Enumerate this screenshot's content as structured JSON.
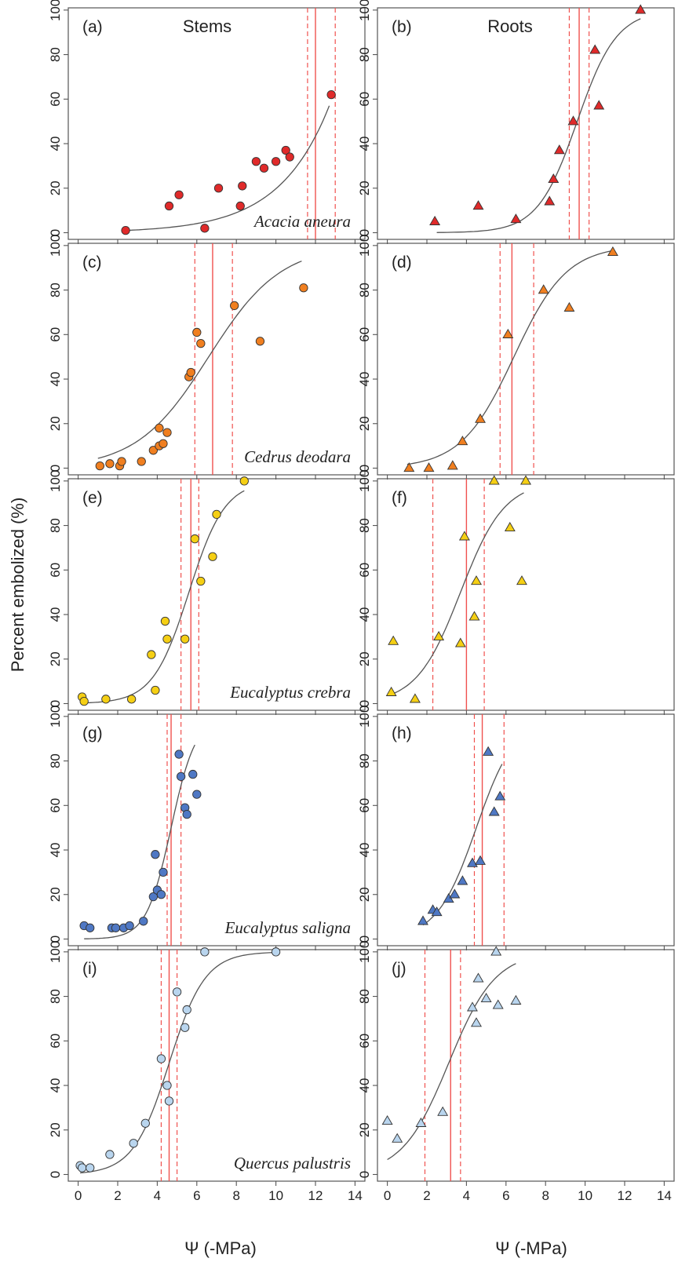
{
  "figure": {
    "ylabel": "Percent embolized (%)",
    "xlabel": "Ψ (-MPa)",
    "columns": [
      "Stems",
      "Roots"
    ],
    "y_ticks": [
      0,
      20,
      40,
      60,
      80,
      100
    ],
    "x_ticks": [
      0,
      2,
      4,
      6,
      8,
      10,
      12,
      14
    ]
  },
  "chart_data": [
    {
      "type": "scatter",
      "panel": "(a)",
      "organ": "Stems",
      "species": "Acacia aneura",
      "marker": "circle",
      "color": "#e02a2a",
      "xlim": [
        -0.5,
        14.5
      ],
      "ylim": [
        -3,
        101
      ],
      "x": [
        2.4,
        4.6,
        5.1,
        6.4,
        7.1,
        8.2,
        8.3,
        9.0,
        9.4,
        10.0,
        10.5,
        10.7,
        12.8
      ],
      "y": [
        1,
        12,
        17,
        2,
        20,
        12,
        21,
        32,
        29,
        32,
        37,
        34,
        62
      ],
      "curve": {
        "x0": 2.4,
        "x1": 12.7,
        "y0": 1,
        "y1": 57
      },
      "p50": 12.0,
      "ci": [
        11.6,
        13.0
      ]
    },
    {
      "type": "scatter",
      "panel": "(b)",
      "organ": "Roots",
      "species": "",
      "marker": "triangle",
      "color": "#e02a2a",
      "xlim": [
        -0.5,
        14.5
      ],
      "ylim": [
        -3,
        101
      ],
      "x": [
        2.4,
        4.6,
        6.5,
        8.2,
        8.4,
        8.7,
        9.4,
        10.5,
        10.7,
        12.8
      ],
      "y": [
        5,
        12,
        6,
        14,
        24,
        37,
        50,
        82,
        57,
        100
      ],
      "curve": {
        "x0": 2.5,
        "x1": 12.8,
        "p50": 9.6,
        "slope": 1.0
      },
      "p50": 9.7,
      "ci": [
        9.2,
        10.2
      ]
    },
    {
      "type": "scatter",
      "panel": "(c)",
      "organ": "Stems",
      "species": "Cedrus deodara",
      "marker": "circle",
      "color": "#f07f20",
      "xlim": [
        -0.5,
        14.5
      ],
      "ylim": [
        -3,
        101
      ],
      "x": [
        1.1,
        1.6,
        2.1,
        2.2,
        3.2,
        3.8,
        4.1,
        4.1,
        4.3,
        4.5,
        5.6,
        5.7,
        6.0,
        6.2,
        7.9,
        9.2,
        11.4
      ],
      "y": [
        1,
        2,
        1,
        3,
        3,
        8,
        10,
        18,
        11,
        16,
        41,
        43,
        61,
        56,
        73,
        57,
        81
      ],
      "curve": {
        "x0": 1.0,
        "x1": 11.3,
        "p50": 6.6,
        "slope": 0.55
      },
      "p50": 6.8,
      "ci": [
        5.9,
        7.8
      ]
    },
    {
      "type": "scatter",
      "panel": "(d)",
      "organ": "Roots",
      "species": "",
      "marker": "triangle",
      "color": "#f07f20",
      "xlim": [
        -0.5,
        14.5
      ],
      "ylim": [
        -3,
        101
      ],
      "x": [
        1.1,
        2.1,
        3.3,
        3.8,
        4.7,
        6.1,
        7.9,
        9.2,
        11.4
      ],
      "y": [
        0,
        0,
        1,
        12,
        22,
        60,
        80,
        72,
        97
      ],
      "curve": {
        "x0": 1.0,
        "x1": 11.4,
        "p50": 6.4,
        "slope": 0.75
      },
      "p50": 6.3,
      "ci": [
        5.7,
        7.4
      ]
    },
    {
      "type": "scatter",
      "panel": "(e)",
      "organ": "Stems",
      "species": "Eucalyptus crebra",
      "marker": "circle",
      "color": "#f5cf14",
      "xlim": [
        -0.5,
        14.5
      ],
      "ylim": [
        -3,
        101
      ],
      "x": [
        0.2,
        0.3,
        1.4,
        2.7,
        3.7,
        3.9,
        4.4,
        4.5,
        5.4,
        5.9,
        6.2,
        6.8,
        7.0,
        8.4
      ],
      "y": [
        3,
        1,
        2,
        2,
        22,
        6,
        37,
        29,
        29,
        74,
        55,
        66,
        85,
        100
      ],
      "curve": {
        "x0": 0.2,
        "x1": 8.4,
        "p50": 5.6,
        "slope": 1.1
      },
      "p50": 5.7,
      "ci": [
        5.2,
        6.1
      ]
    },
    {
      "type": "scatter",
      "panel": "(f)",
      "organ": "Roots",
      "species": "",
      "marker": "triangle",
      "color": "#f5cf14",
      "xlim": [
        -0.5,
        14.5
      ],
      "ylim": [
        -3,
        101
      ],
      "x": [
        0.2,
        0.3,
        1.4,
        2.6,
        3.7,
        3.9,
        4.4,
        4.5,
        5.4,
        6.2,
        6.8,
        7.0
      ],
      "y": [
        5,
        28,
        2,
        30,
        27,
        75,
        39,
        55,
        100,
        79,
        55,
        100
      ],
      "curve": {
        "x0": 0.3,
        "x1": 6.9,
        "p50": 3.7,
        "slope": 0.9
      },
      "p50": 4.0,
      "ci": [
        2.3,
        4.9
      ]
    },
    {
      "type": "scatter",
      "panel": "(g)",
      "organ": "Stems",
      "species": "Eucalyptus saligna",
      "marker": "circle",
      "color": "#4f78c4",
      "xlim": [
        -0.5,
        14.5
      ],
      "ylim": [
        -3,
        101
      ],
      "x": [
        0.3,
        0.6,
        1.7,
        1.9,
        2.3,
        2.6,
        3.3,
        3.8,
        3.9,
        4.0,
        4.2,
        4.3,
        5.1,
        5.2,
        5.4,
        5.5,
        5.8,
        6.0
      ],
      "y": [
        6,
        5,
        5,
        5,
        5,
        6,
        8,
        19,
        38,
        22,
        20,
        30,
        83,
        73,
        59,
        56,
        74,
        65
      ],
      "curve": {
        "x0": 0.3,
        "x1": 5.9,
        "p50": 4.7,
        "slope": 1.6
      },
      "p50": 4.7,
      "ci": [
        4.5,
        5.2
      ]
    },
    {
      "type": "scatter",
      "panel": "(h)",
      "organ": "Roots",
      "species": "",
      "marker": "triangle",
      "color": "#4f78c4",
      "xlim": [
        -0.5,
        14.5
      ],
      "ylim": [
        -3,
        101
      ],
      "x": [
        1.8,
        2.3,
        2.5,
        3.1,
        3.4,
        3.8,
        4.3,
        4.7,
        5.1,
        5.4,
        5.7
      ],
      "y": [
        8,
        13,
        12,
        18,
        20,
        26,
        34,
        35,
        84,
        57,
        64
      ],
      "curve": {
        "x0": 1.8,
        "x1": 5.8,
        "p50": 4.5,
        "slope": 1.0
      },
      "p50": 4.8,
      "ci": [
        4.4,
        5.9
      ]
    },
    {
      "type": "scatter",
      "panel": "(i)",
      "organ": "Stems",
      "species": "Quercus palustris",
      "marker": "circle",
      "color": "#b9d5ee",
      "xlim": [
        -0.5,
        14.5
      ],
      "ylim": [
        -3,
        101
      ],
      "x": [
        0.1,
        0.2,
        0.6,
        1.6,
        2.8,
        3.4,
        4.2,
        4.5,
        4.6,
        5.0,
        5.4,
        5.5,
        6.4,
        10.0
      ],
      "y": [
        4,
        3,
        3,
        9,
        14,
        23,
        52,
        40,
        33,
        82,
        66,
        74,
        100,
        100
      ],
      "curve": {
        "x0": 0.1,
        "x1": 10.0,
        "p50": 4.6,
        "slope": 1.1
      },
      "p50": 4.6,
      "ci": [
        4.2,
        5.0
      ]
    },
    {
      "type": "scatter",
      "panel": "(j)",
      "organ": "Roots",
      "species": "",
      "marker": "triangle",
      "color": "#b9d5ee",
      "xlim": [
        -0.5,
        14.5
      ],
      "ylim": [
        -3,
        101
      ],
      "x": [
        0.0,
        0.5,
        1.7,
        2.8,
        4.3,
        4.5,
        4.6,
        5.0,
        5.5,
        5.6,
        6.5
      ],
      "y": [
        24,
        16,
        23,
        28,
        75,
        68,
        88,
        79,
        100,
        76,
        78
      ],
      "curve": {
        "x0": 0.0,
        "x1": 6.5,
        "p50": 3.1,
        "slope": 0.85
      },
      "p50": 3.2,
      "ci": [
        1.9,
        3.7
      ]
    }
  ]
}
